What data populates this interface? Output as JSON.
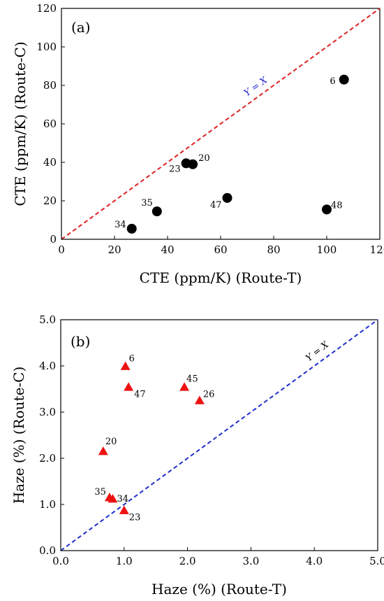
{
  "chart_data": [
    {
      "type": "scatter",
      "panel_label": "(a)",
      "xlabel": "CTE (ppm/K) (Route-T)",
      "ylabel": "CTE (ppm/K) (Route-C)",
      "xlim": [
        0,
        120
      ],
      "ylim": [
        0,
        120
      ],
      "xticks": [
        "0",
        "20",
        "40",
        "60",
        "80",
        "100",
        "120"
      ],
      "yticks": [
        "0",
        "20",
        "40",
        "60",
        "80",
        "100",
        "120"
      ],
      "grid": false,
      "marker": "circle",
      "marker_color": "#000000",
      "reference_line": {
        "label": "Y = X",
        "color": "#2222cc",
        "line_color": "#dd2222",
        "style": "dashed"
      },
      "points": [
        {
          "label": "6",
          "x": 106.5,
          "y": 83
        },
        {
          "label": "20",
          "x": 49.5,
          "y": 39
        },
        {
          "label": "23",
          "x": 47,
          "y": 39.5
        },
        {
          "label": "35",
          "x": 36,
          "y": 14.5
        },
        {
          "label": "34",
          "x": 26.5,
          "y": 5.5
        },
        {
          "label": "47",
          "x": 62.5,
          "y": 21.5
        },
        {
          "label": "48",
          "x": 100,
          "y": 15.5
        }
      ]
    },
    {
      "type": "scatter",
      "panel_label": "(b)",
      "xlabel": "Haze (%) (Route-T)",
      "ylabel": "Haze (%) (Route-C)",
      "xlim": [
        0,
        5
      ],
      "ylim": [
        0,
        5
      ],
      "xticks": [
        "0.0",
        "1.0",
        "2.0",
        "3.0",
        "4.0",
        "5.0"
      ],
      "yticks": [
        "0.0",
        "1.0",
        "2.0",
        "3.0",
        "4.0",
        "5.0"
      ],
      "grid": false,
      "marker": "triangle",
      "marker_color": "#ee1111",
      "reference_line": {
        "label": "Y = X",
        "color": "#000000",
        "line_color": "#1f2fcc",
        "style": "dashed"
      },
      "points": [
        {
          "label": "6",
          "x": 1.02,
          "y": 3.99
        },
        {
          "label": "47",
          "x": 1.07,
          "y": 3.54
        },
        {
          "label": "45",
          "x": 1.95,
          "y": 3.54
        },
        {
          "label": "26",
          "x": 2.19,
          "y": 3.25
        },
        {
          "label": "20",
          "x": 0.67,
          "y": 2.15
        },
        {
          "label": "35",
          "x": 0.77,
          "y": 1.15
        },
        {
          "label": "34",
          "x": 0.82,
          "y": 1.12
        },
        {
          "label": "23",
          "x": 1.0,
          "y": 0.87
        }
      ]
    }
  ]
}
